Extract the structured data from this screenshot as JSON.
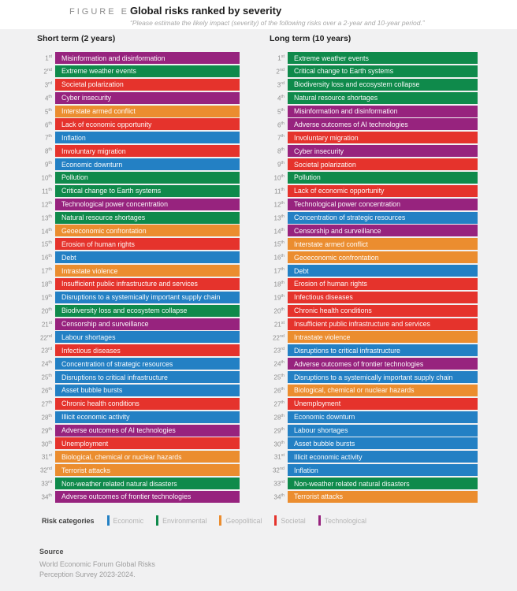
{
  "figure": {
    "label": "FIGURE E",
    "title": "Global risks ranked by severity",
    "subtitle": "“Please estimate the likely impact (severity) of the following risks over a 2-year and 10-year period.”"
  },
  "chart_data": {
    "type": "table",
    "title": "Global risks ranked by severity",
    "legend_position": "bottom",
    "category_colors": {
      "Economic": "#2380c4",
      "Environmental": "#0f8a4b",
      "Geopolitical": "#eb8d2f",
      "Societal": "#e5332c",
      "Technological": "#97237e"
    },
    "columns": [
      {
        "header": "Short term (2 years)",
        "items": [
          {
            "rank": "1",
            "suffix": "st",
            "label": "Misinformation and disinformation",
            "category": "Technological"
          },
          {
            "rank": "2",
            "suffix": "nd",
            "label": "Extreme weather events",
            "category": "Environmental"
          },
          {
            "rank": "3",
            "suffix": "rd",
            "label": "Societal polarization",
            "category": "Societal"
          },
          {
            "rank": "4",
            "suffix": "th",
            "label": "Cyber insecurity",
            "category": "Technological"
          },
          {
            "rank": "5",
            "suffix": "th",
            "label": "Interstate armed conflict",
            "category": "Geopolitical"
          },
          {
            "rank": "6",
            "suffix": "th",
            "label": "Lack of economic opportunity",
            "category": "Societal"
          },
          {
            "rank": "7",
            "suffix": "th",
            "label": "Inflation",
            "category": "Economic"
          },
          {
            "rank": "8",
            "suffix": "th",
            "label": "Involuntary migration",
            "category": "Societal"
          },
          {
            "rank": "9",
            "suffix": "th",
            "label": "Economic downturn",
            "category": "Economic"
          },
          {
            "rank": "10",
            "suffix": "th",
            "label": "Pollution",
            "category": "Environmental"
          },
          {
            "rank": "11",
            "suffix": "th",
            "label": "Critical change to Earth systems",
            "category": "Environmental"
          },
          {
            "rank": "12",
            "suffix": "th",
            "label": "Technological power concentration",
            "category": "Technological"
          },
          {
            "rank": "13",
            "suffix": "th",
            "label": "Natural resource shortages",
            "category": "Environmental"
          },
          {
            "rank": "14",
            "suffix": "th",
            "label": "Geoeconomic confrontation",
            "category": "Geopolitical"
          },
          {
            "rank": "15",
            "suffix": "th",
            "label": "Erosion of human rights",
            "category": "Societal"
          },
          {
            "rank": "16",
            "suffix": "th",
            "label": "Debt",
            "category": "Economic"
          },
          {
            "rank": "17",
            "suffix": "th",
            "label": "Intrastate violence",
            "category": "Geopolitical"
          },
          {
            "rank": "18",
            "suffix": "th",
            "label": "Insufficient public infrastructure and services",
            "category": "Societal"
          },
          {
            "rank": "19",
            "suffix": "th",
            "label": "Disruptions to a systemically important supply chain",
            "category": "Economic"
          },
          {
            "rank": "20",
            "suffix": "th",
            "label": "Biodiversity loss and ecosystem collapse",
            "category": "Environmental"
          },
          {
            "rank": "21",
            "suffix": "st",
            "label": "Censorship and surveillance",
            "category": "Technological"
          },
          {
            "rank": "22",
            "suffix": "nd",
            "label": "Labour shortages",
            "category": "Economic"
          },
          {
            "rank": "23",
            "suffix": "rd",
            "label": "Infectious diseases",
            "category": "Societal"
          },
          {
            "rank": "24",
            "suffix": "th",
            "label": "Concentration of strategic resources",
            "category": "Economic"
          },
          {
            "rank": "25",
            "suffix": "th",
            "label": "Disruptions to critical infrastructure",
            "category": "Economic"
          },
          {
            "rank": "26",
            "suffix": "th",
            "label": "Asset bubble bursts",
            "category": "Economic"
          },
          {
            "rank": "27",
            "suffix": "th",
            "label": "Chronic health conditions",
            "category": "Societal"
          },
          {
            "rank": "28",
            "suffix": "th",
            "label": "Illicit economic activity",
            "category": "Economic"
          },
          {
            "rank": "29",
            "suffix": "th",
            "label": "Adverse outcomes of AI technologies",
            "category": "Technological"
          },
          {
            "rank": "30",
            "suffix": "th",
            "label": "Unemployment",
            "category": "Societal"
          },
          {
            "rank": "31",
            "suffix": "st",
            "label": "Biological, chemical or nuclear hazards",
            "category": "Geopolitical"
          },
          {
            "rank": "32",
            "suffix": "nd",
            "label": "Terrorist attacks",
            "category": "Geopolitical"
          },
          {
            "rank": "33",
            "suffix": "rd",
            "label": "Non-weather related natural disasters",
            "category": "Environmental"
          },
          {
            "rank": "34",
            "suffix": "th",
            "label": "Adverse outcomes of frontier technologies",
            "category": "Technological"
          }
        ]
      },
      {
        "header": "Long term (10 years)",
        "items": [
          {
            "rank": "1",
            "suffix": "st",
            "label": "Extreme weather events",
            "category": "Environmental"
          },
          {
            "rank": "2",
            "suffix": "nd",
            "label": "Critical change to Earth systems",
            "category": "Environmental"
          },
          {
            "rank": "3",
            "suffix": "rd",
            "label": "Biodiversity loss and ecosystem collapse",
            "category": "Environmental"
          },
          {
            "rank": "4",
            "suffix": "th",
            "label": "Natural resource shortages",
            "category": "Environmental"
          },
          {
            "rank": "5",
            "suffix": "th",
            "label": "Misinformation and disinformation",
            "category": "Technological"
          },
          {
            "rank": "6",
            "suffix": "th",
            "label": "Adverse outcomes of AI technologies",
            "category": "Technological"
          },
          {
            "rank": "7",
            "suffix": "th",
            "label": "Involuntary migration",
            "category": "Societal"
          },
          {
            "rank": "8",
            "suffix": "th",
            "label": "Cyber insecurity",
            "category": "Technological"
          },
          {
            "rank": "9",
            "suffix": "th",
            "label": "Societal polarization",
            "category": "Societal"
          },
          {
            "rank": "10",
            "suffix": "th",
            "label": "Pollution",
            "category": "Environmental"
          },
          {
            "rank": "11",
            "suffix": "th",
            "label": "Lack of economic opportunity",
            "category": "Societal"
          },
          {
            "rank": "12",
            "suffix": "th",
            "label": "Technological power concentration",
            "category": "Technological"
          },
          {
            "rank": "13",
            "suffix": "th",
            "label": "Concentration of strategic resources",
            "category": "Economic"
          },
          {
            "rank": "14",
            "suffix": "th",
            "label": "Censorship and surveillance",
            "category": "Technological"
          },
          {
            "rank": "15",
            "suffix": "th",
            "label": "Interstate armed conflict",
            "category": "Geopolitical"
          },
          {
            "rank": "16",
            "suffix": "th",
            "label": "Geoeconomic confrontation",
            "category": "Geopolitical"
          },
          {
            "rank": "17",
            "suffix": "th",
            "label": "Debt",
            "category": "Economic"
          },
          {
            "rank": "18",
            "suffix": "th",
            "label": "Erosion of human rights",
            "category": "Societal"
          },
          {
            "rank": "19",
            "suffix": "th",
            "label": "Infectious diseases",
            "category": "Societal"
          },
          {
            "rank": "20",
            "suffix": "th",
            "label": "Chronic health conditions",
            "category": "Societal"
          },
          {
            "rank": "21",
            "suffix": "st",
            "label": "Insufficient public infrastructure and services",
            "category": "Societal"
          },
          {
            "rank": "22",
            "suffix": "nd",
            "label": "Intrastate violence",
            "category": "Geopolitical"
          },
          {
            "rank": "23",
            "suffix": "rd",
            "label": "Disruptions to critical infrastructure",
            "category": "Economic"
          },
          {
            "rank": "24",
            "suffix": "th",
            "label": "Adverse outcomes of frontier technologies",
            "category": "Technological"
          },
          {
            "rank": "25",
            "suffix": "th",
            "label": "Disruptions to a systemically important supply chain",
            "category": "Economic"
          },
          {
            "rank": "26",
            "suffix": "th",
            "label": "Biological, chemical or nuclear hazards",
            "category": "Geopolitical"
          },
          {
            "rank": "27",
            "suffix": "th",
            "label": "Unemployment",
            "category": "Societal"
          },
          {
            "rank": "28",
            "suffix": "th",
            "label": "Economic downturn",
            "category": "Economic"
          },
          {
            "rank": "29",
            "suffix": "th",
            "label": "Labour shortages",
            "category": "Economic"
          },
          {
            "rank": "30",
            "suffix": "th",
            "label": "Asset bubble bursts",
            "category": "Economic"
          },
          {
            "rank": "31",
            "suffix": "st",
            "label": "Illicit economic activity",
            "category": "Economic"
          },
          {
            "rank": "32",
            "suffix": "nd",
            "label": "Inflation",
            "category": "Economic"
          },
          {
            "rank": "33",
            "suffix": "rd",
            "label": "Non-weather related natural disasters",
            "category": "Environmental"
          },
          {
            "rank": "34",
            "suffix": "th",
            "label": "Terrorist attacks",
            "category": "Geopolitical"
          }
        ]
      }
    ]
  },
  "legend": {
    "title": "Risk categories",
    "categories": [
      "Economic",
      "Environmental",
      "Geopolitical",
      "Societal",
      "Technological"
    ]
  },
  "source": {
    "heading": "Source",
    "lines": [
      "World Economic Forum Global Risks",
      "Perception Survey 2023-2024."
    ]
  }
}
